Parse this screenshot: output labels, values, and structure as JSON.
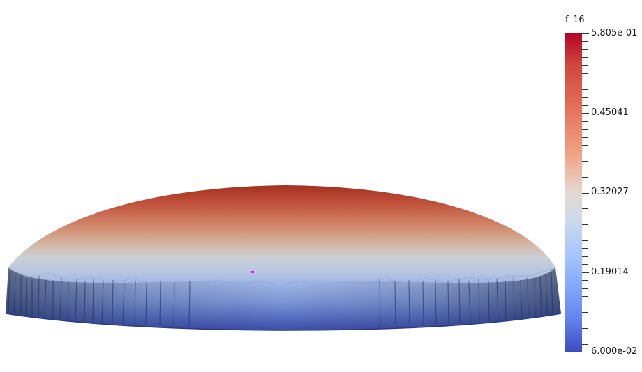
{
  "colorbar": {
    "title": "f_16",
    "labels": {
      "max": "5.805e-01",
      "l3": "0.45041",
      "l2": "0.32027",
      "l1": "0.19014",
      "min": "6.000e-02"
    }
  },
  "colors": {
    "high": "#b40426",
    "mid": "#dddddd",
    "low": "#3b4cc0",
    "marker": "#ff00ff"
  }
}
